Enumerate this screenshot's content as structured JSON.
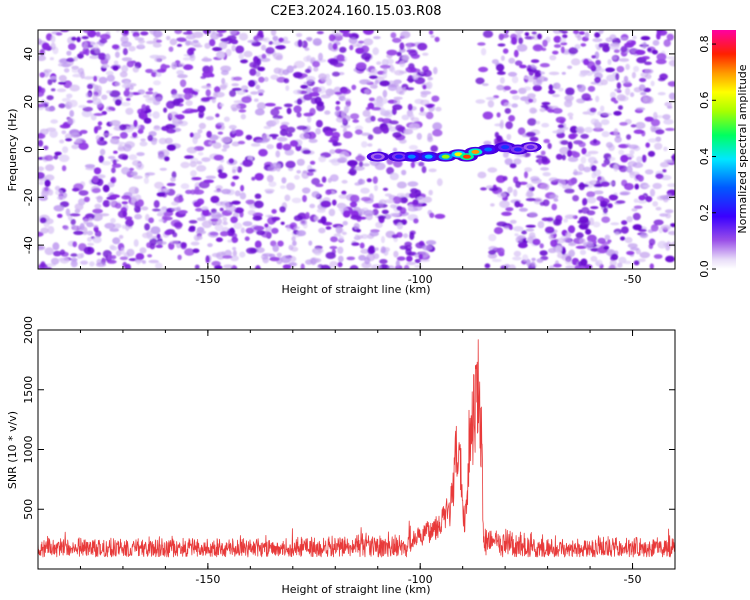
{
  "title": "C2E3.2024.160.15.03.R08",
  "chart_data": [
    {
      "type": "heatmap",
      "xlabel": "Height of straight line (km)",
      "ylabel": "Frequency (Hz)",
      "xlim": [
        -190,
        -40
      ],
      "ylim": [
        -50,
        50
      ],
      "xticks": [
        -150,
        -100,
        -50
      ],
      "yticks": [
        -40,
        -20,
        0,
        20,
        40
      ],
      "gap_x": [
        -95,
        -86
      ],
      "ridge": [
        {
          "x": -110,
          "y": -3,
          "v": 0.15
        },
        {
          "x": -105,
          "y": -3,
          "v": 0.22
        },
        {
          "x": -102,
          "y": -3,
          "v": 0.32
        },
        {
          "x": -98,
          "y": -3,
          "v": 0.36
        },
        {
          "x": -94,
          "y": -3,
          "v": 0.55
        },
        {
          "x": -91,
          "y": -2,
          "v": 0.62
        },
        {
          "x": -89,
          "y": -3,
          "v": 0.75
        },
        {
          "x": -87,
          "y": -1,
          "v": 0.7
        },
        {
          "x": -84,
          "y": 0,
          "v": 0.3
        },
        {
          "x": -80,
          "y": 1,
          "v": 0.25
        },
        {
          "x": -77,
          "y": 0,
          "v": 0.22
        },
        {
          "x": -74,
          "y": 1,
          "v": 0.15
        }
      ],
      "colorbar": {
        "label": "Normalized spectral amplitude",
        "range": [
          0,
          0.85
        ],
        "ticks": [
          "0.0",
          "0.2",
          "0.4",
          "0.6",
          "0.8"
        ]
      }
    },
    {
      "type": "line",
      "xlabel": "Height of straight line (km)",
      "ylabel": "SNR (10 * v/v)",
      "xlim": [
        -190,
        -40
      ],
      "ylim": [
        0,
        2000
      ],
      "xticks": [
        -150,
        -100,
        -50
      ],
      "yticks": [
        500,
        1000,
        1500,
        2000
      ],
      "series": [
        {
          "color": "#e83a3a",
          "baseline": [
            100,
            260
          ],
          "x": [
            -190,
            -120,
            -110,
            -105,
            -102,
            -99,
            -97,
            -95,
            -93,
            -92,
            -91.5,
            -91,
            -90.5,
            -90,
            -89.5,
            -89,
            -88.5,
            -88,
            -87.5,
            -87,
            -86.5,
            -86,
            -85.5,
            -85,
            -84,
            -82,
            -80,
            -75,
            -70,
            -60,
            -50,
            -40
          ],
          "values": [
            170,
            180,
            210,
            230,
            300,
            360,
            420,
            500,
            620,
            900,
            1200,
            1350,
            1050,
            700,
            480,
            780,
            1300,
            1500,
            1600,
            1750,
            2000,
            1800,
            1200,
            150,
            300,
            320,
            260,
            200,
            180,
            175,
            180,
            170
          ]
        }
      ]
    }
  ],
  "colors": {
    "line": "#e83a3a",
    "speckle": "#7a1ed8",
    "speckle_light": "#cdb0f0"
  }
}
